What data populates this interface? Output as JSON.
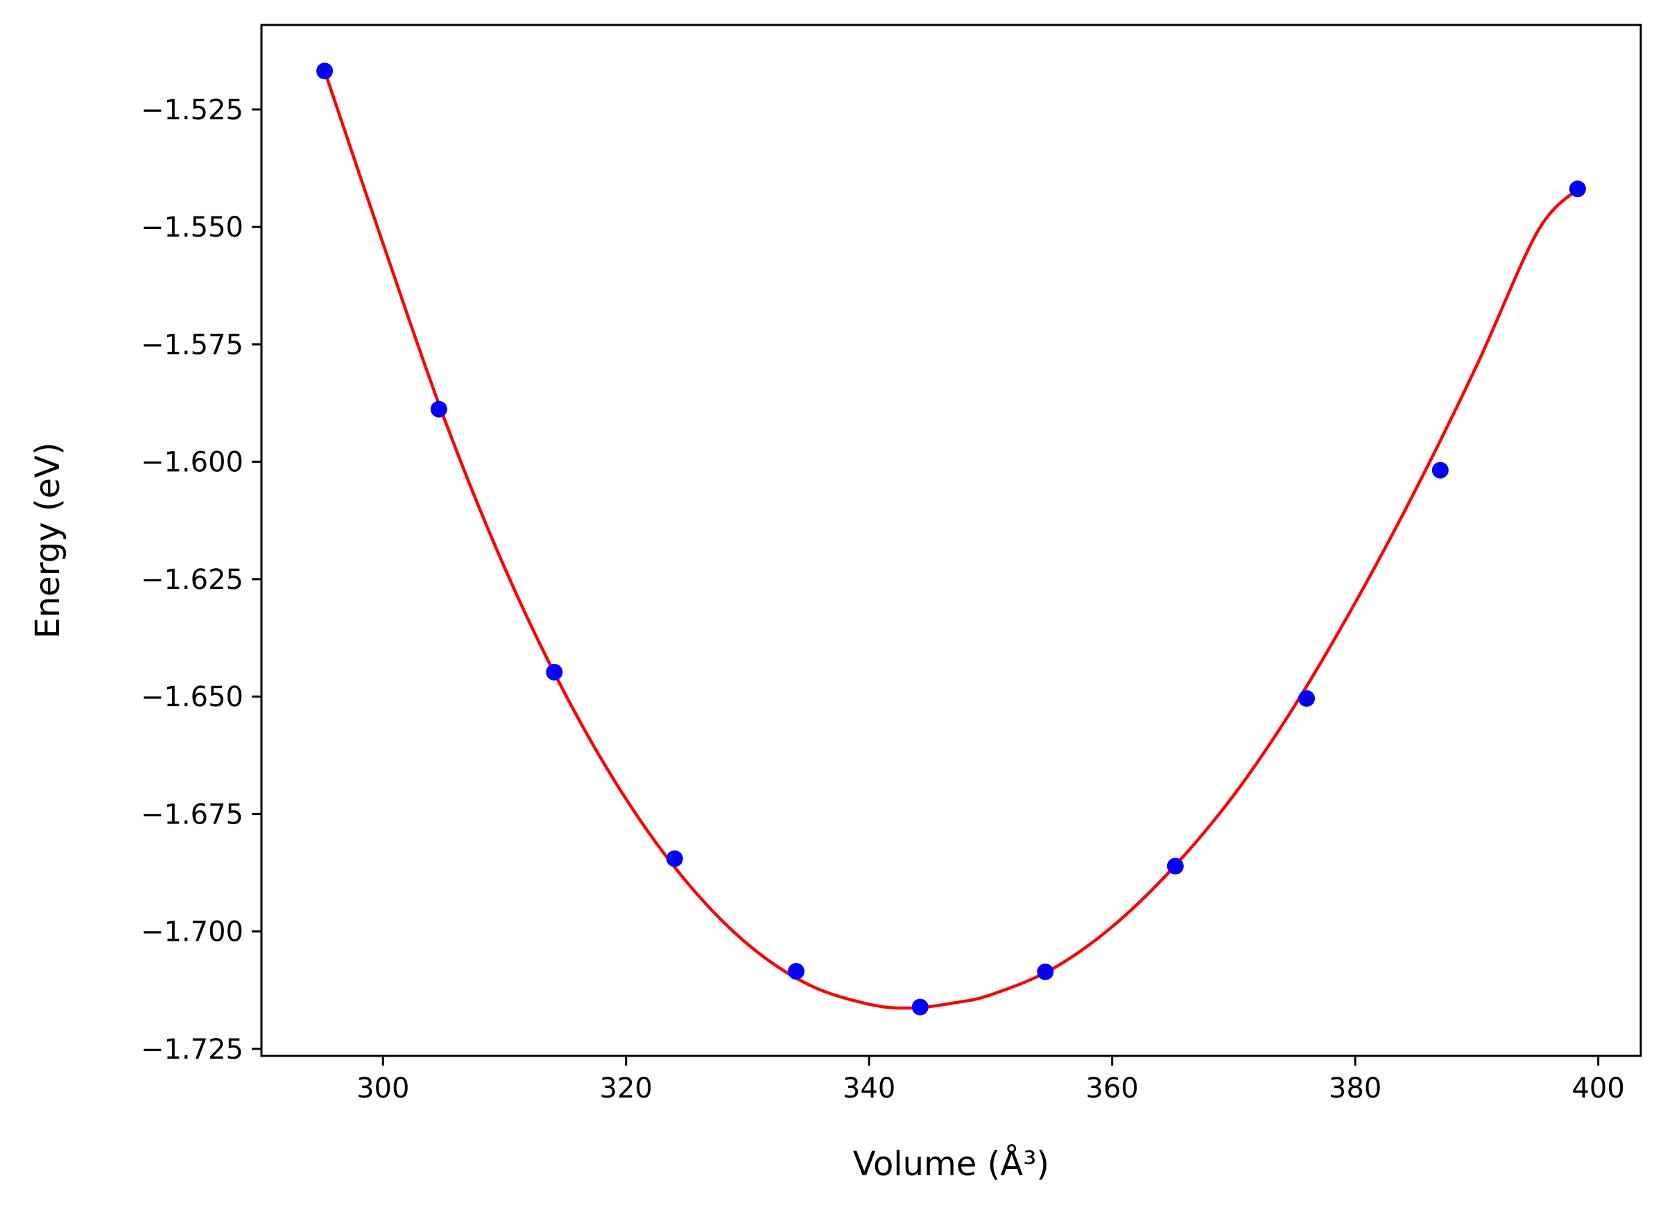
{
  "chart_data": {
    "type": "scatter",
    "title": "",
    "xlabel": "Volume (Å³)",
    "ylabel": "Energy (eV)",
    "xlim": [
      290,
      403.5
    ],
    "ylim": [
      -1.7265,
      -1.507
    ],
    "grid": false,
    "xticks": [
      300,
      320,
      340,
      360,
      380,
      400
    ],
    "xtick_labels": [
      "300",
      "320",
      "340",
      "360",
      "380",
      "400"
    ],
    "yticks": [
      -1.525,
      -1.55,
      -1.575,
      -1.6,
      -1.625,
      -1.65,
      -1.675,
      -1.7,
      -1.725
    ],
    "ytick_labels": [
      "−1.525",
      "−1.550",
      "−1.575",
      "−1.600",
      "−1.625",
      "−1.650",
      "−1.675",
      "−1.700",
      "−1.725"
    ],
    "series": [
      {
        "kind": "points",
        "color": "#0000ff",
        "x": [
          295.2,
          304.6,
          314.1,
          324.0,
          334.0,
          344.2,
          354.5,
          365.2,
          376.0,
          387.0,
          398.3
        ],
        "y": [
          -1.5168,
          -1.5888,
          -1.6448,
          -1.6845,
          -1.7085,
          -1.7161,
          -1.7086,
          -1.6861,
          -1.6504,
          -1.6018,
          -1.5419
        ]
      },
      {
        "kind": "fit-curve",
        "color": "#ff0000",
        "x": [
          295.2,
          300,
          305,
          310,
          315,
          320,
          325,
          330,
          335,
          340,
          343.5,
          347,
          350,
          355,
          360,
          365,
          370,
          375,
          380,
          385,
          390,
          395,
          398.3
        ],
        "y": [
          -1.5168,
          -1.5535,
          -1.5905,
          -1.6225,
          -1.6495,
          -1.6718,
          -1.6895,
          -1.7027,
          -1.7113,
          -1.7155,
          -1.7163,
          -1.7152,
          -1.7135,
          -1.7081,
          -1.699,
          -1.6865,
          -1.671,
          -1.652,
          -1.63,
          -1.6058,
          -1.5795,
          -1.551,
          -1.5419
        ]
      }
    ]
  }
}
